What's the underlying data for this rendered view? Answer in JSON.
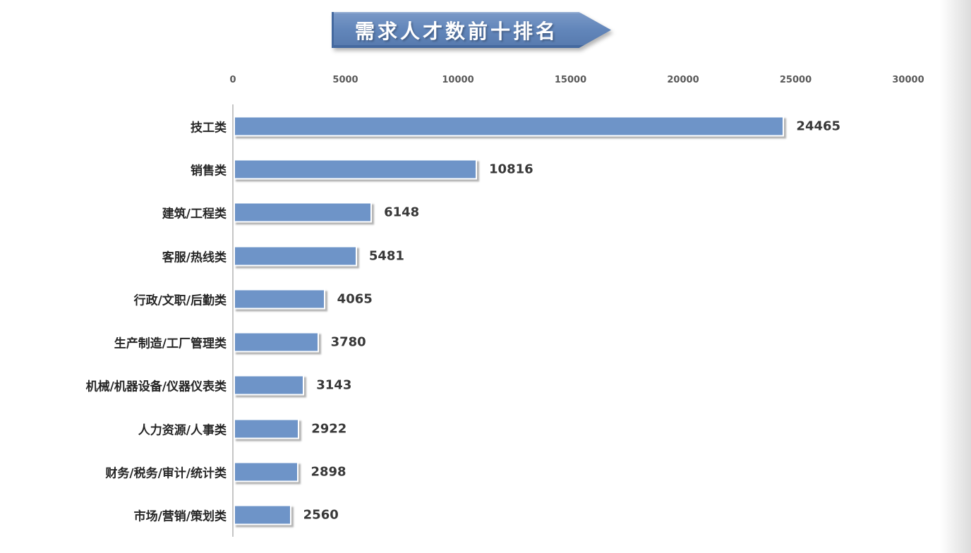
{
  "page": {
    "background": "#ffffff",
    "right_edge_shade": "#dcdcdc"
  },
  "title": {
    "text": "需求人才数前十排名"
  },
  "banner": {
    "fill": "#6286ba",
    "fill_top": "#7a99c7",
    "fill_bottom": "#5679ad",
    "edge": "#44699f",
    "text_color": "#ffffff"
  },
  "chart_data": {
    "type": "bar",
    "orientation": "horizontal",
    "title": "需求人才数前十排名",
    "categories": [
      "技工类",
      "销售类",
      "建筑/工程类",
      "客服/热线类",
      "行政/文职/后勤类",
      "生产制造/工厂管理类",
      "机械/机器设备/仪器仪表类",
      "人力资源/人事类",
      "财务/税务/审计/统计类",
      "市场/营销/策划类"
    ],
    "values": [
      24465,
      10816,
      6148,
      5481,
      4065,
      3780,
      3143,
      2922,
      2898,
      2560
    ],
    "xlabel": "",
    "ylabel": "",
    "xlim": [
      0,
      30000
    ],
    "x_ticks": [
      0,
      5000,
      10000,
      15000,
      20000,
      25000,
      30000
    ],
    "x_tick_labels": [
      "0",
      "5000",
      "10000",
      "15000",
      "20000",
      "25000",
      "30000"
    ],
    "axis_position": "top",
    "grid": false,
    "legend": false,
    "value_labels": true,
    "colors": {
      "bar_fill": "#6e94c8",
      "bar_border": "#ffffff",
      "bar_shadow": "rgba(128,128,128,0.6)",
      "axis_line": "#c6c6c6",
      "tick_label": "#595959",
      "category_label": "#262626",
      "value_label": "#383838"
    }
  }
}
